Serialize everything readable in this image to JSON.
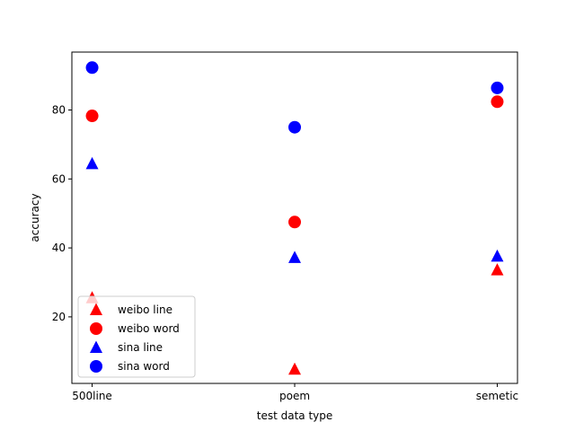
{
  "chart_data": {
    "type": "scatter",
    "title": "",
    "xlabel": "test data type",
    "ylabel": "accuracy",
    "categories": [
      "500line",
      "poem",
      "semetic"
    ],
    "xlim": [
      -0.1,
      2.1
    ],
    "ylim": [
      0.7,
      96.8
    ],
    "yticks": [
      20,
      40,
      60,
      80
    ],
    "grid": false,
    "legend_position": "lower-left",
    "series": [
      {
        "name": "weibo line",
        "marker": "triangle",
        "color": "#ff0000",
        "values": [
          25.5,
          4.8,
          33.6
        ]
      },
      {
        "name": "weibo word",
        "marker": "circle",
        "color": "#ff0000",
        "values": [
          78.3,
          47.5,
          82.4
        ]
      },
      {
        "name": "sina line",
        "marker": "triangle",
        "color": "#0000ff",
        "values": [
          64.4,
          37.2,
          37.6
        ]
      },
      {
        "name": "sina word",
        "marker": "circle",
        "color": "#0000ff",
        "values": [
          92.3,
          75.0,
          86.4
        ]
      }
    ]
  }
}
